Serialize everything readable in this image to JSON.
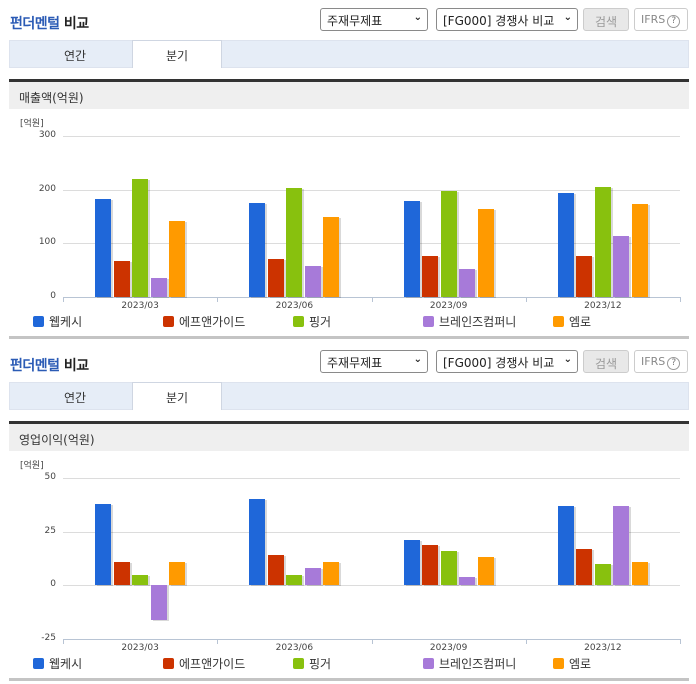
{
  "colors": {
    "accent": "#2b5bb5",
    "series": [
      "#1f67d9",
      "#cc3300",
      "#88c10e",
      "#a77ad9",
      "#ff9a00"
    ]
  },
  "panels": [
    {
      "title_accent": "펀더멘털",
      "title_rest": " 비교",
      "select1": {
        "value": "주재무제표",
        "icon": "chevron-down-icon"
      },
      "select2": {
        "value": "[FG000] 경쟁사 비교",
        "icon": "chevron-down-icon"
      },
      "search_label": "검색",
      "ifrs_label": "IFRS",
      "help_glyph": "?",
      "tabs": [
        {
          "label": "연간",
          "active": false
        },
        {
          "label": "분기",
          "active": true
        }
      ],
      "metric_title": "매출액(억원)",
      "unit": "[억원]",
      "yticks": [
        "300",
        "200",
        "100",
        "0"
      ]
    },
    {
      "title_accent": "펀더멘털",
      "title_rest": " 비교",
      "select1": {
        "value": "주재무제표",
        "icon": "chevron-down-icon"
      },
      "select2": {
        "value": "[FG000] 경쟁사 비교",
        "icon": "chevron-down-icon"
      },
      "search_label": "검색",
      "ifrs_label": "IFRS",
      "help_glyph": "?",
      "tabs": [
        {
          "label": "연간",
          "active": false
        },
        {
          "label": "분기",
          "active": true
        }
      ],
      "metric_title": "영업이익(억원)",
      "unit": "[억원]",
      "yticks": [
        "50",
        "25",
        "0",
        "-25"
      ]
    }
  ],
  "legend": [
    "웹케시",
    "에프앤가이드",
    "핑거",
    "브레인즈컴퍼니",
    "엠로"
  ],
  "chart_data": [
    {
      "type": "bar",
      "title": "매출액(억원)",
      "ylabel": "[억원]",
      "xlabel": "",
      "categories": [
        "2023/03",
        "2023/06",
        "2023/09",
        "2023/12"
      ],
      "ylim": [
        0,
        300
      ],
      "yticks": [
        0,
        100,
        200,
        300
      ],
      "grid": true,
      "legend_position": "bottom",
      "series": [
        {
          "name": "웹케시",
          "color": "#1f67d9",
          "values": [
            183,
            175,
            179,
            194
          ]
        },
        {
          "name": "에프앤가이드",
          "color": "#cc3300",
          "values": [
            68,
            70,
            77,
            76
          ]
        },
        {
          "name": "핑거",
          "color": "#88c10e",
          "values": [
            220,
            203,
            197,
            205
          ]
        },
        {
          "name": "브레인즈컴퍼니",
          "color": "#a77ad9",
          "values": [
            35,
            57,
            53,
            113
          ]
        },
        {
          "name": "엠로",
          "color": "#ff9a00",
          "values": [
            141,
            149,
            164,
            173
          ]
        }
      ]
    },
    {
      "type": "bar",
      "title": "영업이익(억원)",
      "ylabel": "[억원]",
      "xlabel": "",
      "categories": [
        "2023/03",
        "2023/06",
        "2023/09",
        "2023/12"
      ],
      "ylim": [
        -25,
        50
      ],
      "yticks": [
        -25,
        0,
        25,
        50
      ],
      "grid": true,
      "legend_position": "bottom",
      "series": [
        {
          "name": "웹케시",
          "color": "#1f67d9",
          "values": [
            38,
            40,
            21,
            37
          ]
        },
        {
          "name": "에프앤가이드",
          "color": "#cc3300",
          "values": [
            11,
            14,
            19,
            17
          ]
        },
        {
          "name": "핑거",
          "color": "#88c10e",
          "values": [
            5,
            5,
            16,
            10
          ]
        },
        {
          "name": "브레인즈컴퍼니",
          "color": "#a77ad9",
          "values": [
            -16,
            8,
            4,
            37
          ]
        },
        {
          "name": "엠로",
          "color": "#ff9a00",
          "values": [
            11,
            11,
            13,
            11
          ]
        }
      ]
    }
  ]
}
